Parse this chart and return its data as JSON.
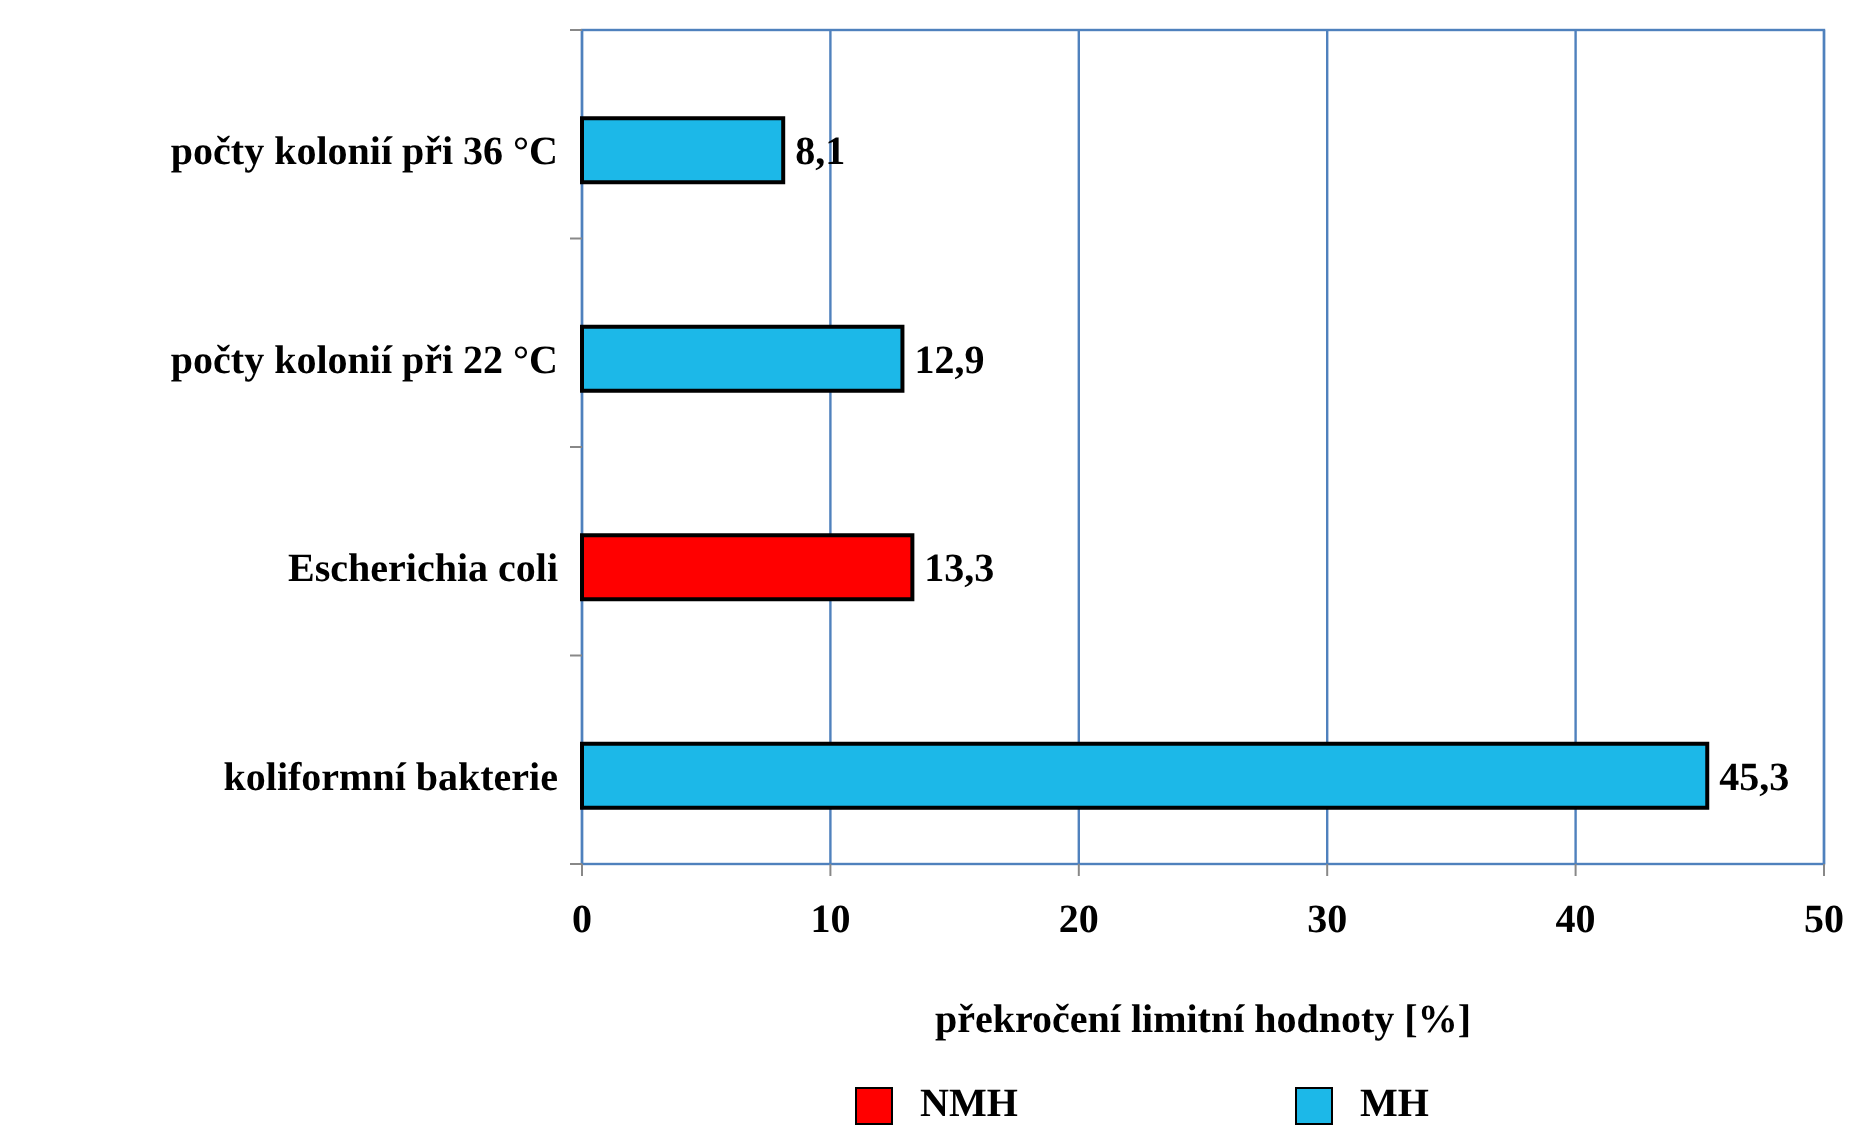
{
  "chart_data": {
    "type": "bar",
    "orientation": "horizontal",
    "xlabel": "překročení limitní hodnoty [%]",
    "categories": [
      "počty kolonií při 36 °C",
      "počty kolonií při 22 °C",
      "Escherichia coli",
      "koliformní bakterie"
    ],
    "series": [
      {
        "name": "NMH",
        "color": "#ff0000",
        "values": [
          null,
          null,
          13.3,
          null
        ],
        "value_labels": [
          null,
          null,
          "13,3",
          null
        ]
      },
      {
        "name": "MH",
        "color": "#1cb8e8",
        "values": [
          8.1,
          12.9,
          null,
          45.3
        ],
        "value_labels": [
          "8,1",
          "12,9",
          null,
          "45,3"
        ]
      }
    ],
    "xlim": [
      0,
      50
    ],
    "xticks": [
      0,
      10,
      20,
      30,
      40,
      50
    ],
    "grid": "x",
    "legend": "bottom"
  }
}
